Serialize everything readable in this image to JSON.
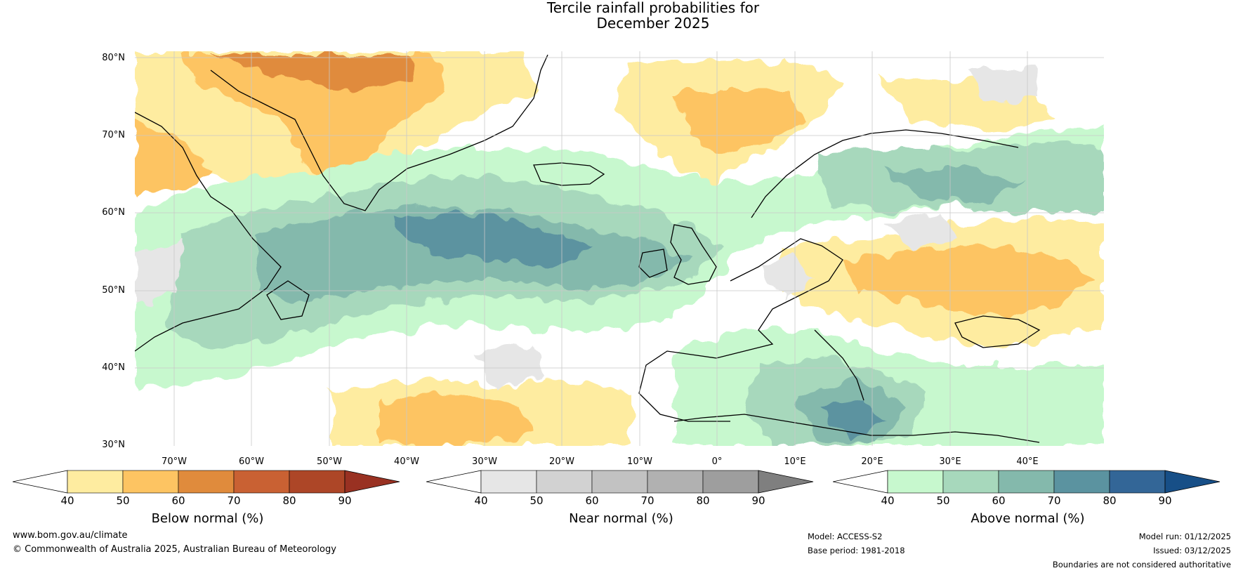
{
  "title": {
    "line1": "Tercile rainfall probabilities for",
    "line2": "December 2025"
  },
  "map": {
    "latitude_labels": [
      "80°N",
      "70°N",
      "60°N",
      "50°N",
      "40°N",
      "30°N"
    ],
    "longitude_labels": [
      "70°W",
      "60°W",
      "50°W",
      "40°W",
      "30°W",
      "20°W",
      "10°W",
      "0°",
      "10°E",
      "20°E",
      "30°E",
      "40°E"
    ],
    "extent": {
      "lon_min": -75,
      "lon_max": 50,
      "lat_min": 30,
      "lat_max": 81
    }
  },
  "legends": [
    {
      "name": "below-normal",
      "title": "Below normal (%)",
      "ticks": [
        "40",
        "50",
        "60",
        "70",
        "80",
        "90"
      ],
      "colors": [
        "#ffffff",
        "#feeca0",
        "#fdc462",
        "#e08b3c",
        "#c96133",
        "#ad4627",
        "#993122"
      ]
    },
    {
      "name": "near-normal",
      "title": "Near normal (%)",
      "ticks": [
        "40",
        "50",
        "60",
        "70",
        "80",
        "90"
      ],
      "colors": [
        "#ffffff",
        "#e6e6e6",
        "#d2d2d2",
        "#c2c2c2",
        "#b1b1b1",
        "#9e9e9e",
        "#7f7f7f"
      ]
    },
    {
      "name": "above-normal",
      "title": "Above normal (%)",
      "ticks": [
        "40",
        "50",
        "60",
        "70",
        "80",
        "90"
      ],
      "colors": [
        "#ffffff",
        "#c7f8ce",
        "#a7d8bc",
        "#84b9ac",
        "#5b93a0",
        "#336697",
        "#174f87"
      ]
    }
  ],
  "footer": {
    "url": "www.bom.gov.au/climate",
    "copyright": "© Commonwealth of Australia 2025, Australian Bureau of Meteorology",
    "model": "Model: ACCESS-S2",
    "base_period": "Base period: 1981-2018",
    "model_run": "Model run: 01/12/2025",
    "issued": "Issued: 03/12/2025",
    "disclaimer": "Boundaries are not considered authoritative"
  }
}
